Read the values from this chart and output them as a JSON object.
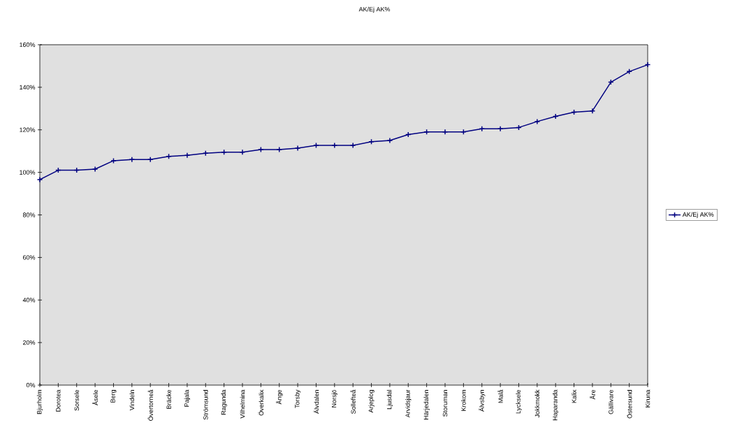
{
  "chart_data": {
    "type": "line",
    "title": "AK/Ej AK%",
    "categories": [
      "Bjurholm",
      "Dorotea",
      "Sorsele",
      "Åsele",
      "Berg",
      "Vindeln",
      "Övertorneå",
      "Bräcke",
      "Pajala",
      "Strömsund",
      "Ragunda",
      "Vilhelmina",
      "Överkalix",
      "Ånge",
      "Torsby",
      "Älvdalen",
      "Norsjö",
      "Sollefteå",
      "Arjeplog",
      "Ljusdal",
      "Arvidsjaur",
      "Härjedalen",
      "Storuman",
      "Krokom",
      "Älvsbyn",
      "Malå",
      "Lycksele",
      "Jokkmokk",
      "Haparanda",
      "Kalix",
      "Åre",
      "Gällivare",
      "Östersund",
      "Kiruna"
    ],
    "series": [
      {
        "name": "AK/Ej AK%",
        "color": "#000080",
        "values": [
          96.6,
          101,
          101,
          101.5,
          105.5,
          106,
          106,
          107.5,
          108,
          109,
          109.5,
          109.5,
          110.7,
          110.7,
          111.4,
          112.7,
          112.7,
          112.7,
          114.4,
          115,
          117.8,
          119,
          119,
          119,
          120.5,
          120.5,
          121.1,
          123.9,
          126.3,
          128.3,
          128.9,
          142.4,
          147.4,
          150.6
        ]
      }
    ],
    "ylim": [
      0,
      160
    ],
    "yticks": [
      {
        "value": 0,
        "label": "0%"
      },
      {
        "value": 20,
        "label": "20%"
      },
      {
        "value": 40,
        "label": "40%"
      },
      {
        "value": 60,
        "label": "60%"
      },
      {
        "value": 80,
        "label": "80%"
      },
      {
        "value": 100,
        "label": "100%"
      },
      {
        "value": 120,
        "label": "120%"
      },
      {
        "value": 140,
        "label": "140%"
      },
      {
        "value": 160,
        "label": "160%"
      }
    ],
    "grid": false,
    "legend": "right",
    "marker": "cross",
    "line_style": "solid"
  }
}
